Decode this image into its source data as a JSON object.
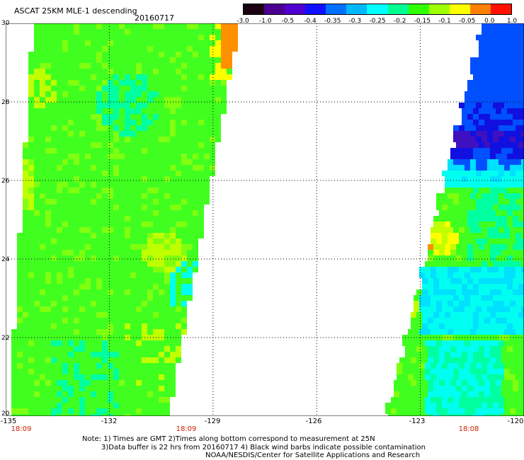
{
  "header": {
    "title": "ASCAT 25KM MLE-1 descending",
    "date": "20160717"
  },
  "colorbar": {
    "labels": [
      "-3.0",
      "-1.0",
      "-0.5",
      "-0.4",
      "-0.35",
      "-0.3",
      "-0.25",
      "-0.2",
      "-0.15",
      "-0.1",
      "-0.05",
      "0.0",
      "1.0"
    ],
    "colors": [
      "#1a0010",
      "#4a0090",
      "#5000d0",
      "#1010ff",
      "#0070ff",
      "#00b8ff",
      "#00ffff",
      "#00ff90",
      "#30ff00",
      "#a0ff00",
      "#ffff00",
      "#ff8000",
      "#ff1000"
    ]
  },
  "map": {
    "lat_labels": [
      "30",
      "28",
      "26",
      "24",
      "22",
      "20"
    ],
    "lon_labels": [
      "-135",
      "-132",
      "-129",
      "-126",
      "-123",
      "-120"
    ],
    "lat_range": [
      20,
      30
    ],
    "lon_range": [
      -135,
      -120
    ],
    "swath_times": [
      "18:09",
      "18:09",
      "18:08"
    ],
    "grid": "dotted",
    "palette": {
      "green": "#40ff20",
      "lime": "#80ff10",
      "yellow_green": "#c0ff00",
      "yellow": "#ffff00",
      "orange": "#ff9000",
      "cyan_green": "#00ffa0",
      "cyan": "#00fff0",
      "aqua": "#00e0ff",
      "blue": "#0050ff",
      "deep_blue": "#1010e0",
      "purple": "#4010c0"
    }
  },
  "notes": [
    "Note: 1) Times are GMT 2)Times along bottom correspond to measurement at 25N",
    "3)Data buffer is 22 hrs from 20160717 4) Black wind barbs indicate possible contamination",
    "NOAA/NESDIS/Center for Satellite Applications and Research"
  ]
}
